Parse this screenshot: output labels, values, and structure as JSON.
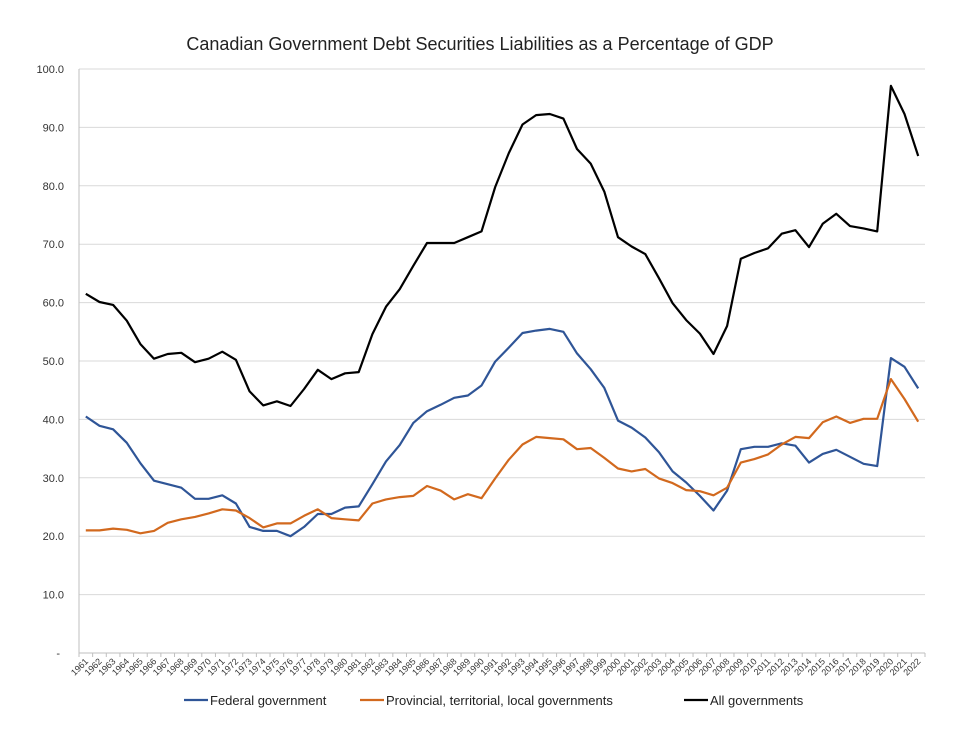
{
  "chart_data": {
    "type": "line",
    "title": "Canadian Government  Debt Securities Liabilities as a Percentage of GDP",
    "xlabel": "",
    "ylabel": "",
    "ylim": [
      0,
      100
    ],
    "yticks": [
      "-",
      "10.0",
      "20.0",
      "30.0",
      "40.0",
      "50.0",
      "60.0",
      "70.0",
      "80.0",
      "90.0",
      "100.0"
    ],
    "grid": true,
    "legend_placement": "bottom",
    "x": [
      1961,
      1962,
      1963,
      1964,
      1965,
      1966,
      1967,
      1968,
      1969,
      1970,
      1971,
      1972,
      1973,
      1974,
      1975,
      1976,
      1977,
      1978,
      1979,
      1980,
      1981,
      1982,
      1983,
      1984,
      1985,
      1986,
      1987,
      1988,
      1989,
      1990,
      1991,
      1992,
      1993,
      1994,
      1995,
      1996,
      1997,
      1998,
      1999,
      2000,
      2001,
      2002,
      2003,
      2004,
      2005,
      2006,
      2007,
      2008,
      2009,
      2010,
      2011,
      2012,
      2013,
      2014,
      2015,
      2016,
      2017,
      2018,
      2019,
      2020,
      2021,
      2022
    ],
    "series": [
      {
        "name": "Federal government",
        "color": "#2F5597",
        "values": [
          40.5,
          38.9,
          38.3,
          36.0,
          32.5,
          29.5,
          28.9,
          28.3,
          26.4,
          26.4,
          27.0,
          25.6,
          21.6,
          20.9,
          20.9,
          20.0,
          21.6,
          23.8,
          23.8,
          24.9,
          25.1,
          28.9,
          32.8,
          35.6,
          39.4,
          41.4,
          42.5,
          43.7,
          44.1,
          45.8,
          49.9,
          52.3,
          54.8,
          55.2,
          55.5,
          55.0,
          51.3,
          48.6,
          45.4,
          39.8,
          38.6,
          36.9,
          34.4,
          31.1,
          29.2,
          26.9,
          24.4,
          27.8,
          34.9,
          35.3,
          35.3,
          35.9,
          35.5,
          32.6,
          34.1,
          34.8,
          33.6,
          32.4,
          32.0,
          50.5,
          49.0,
          45.3
        ]
      },
      {
        "name": "Provincial, territorial, local governments",
        "color": "#D2691E",
        "values": [
          21.0,
          21.0,
          21.3,
          21.1,
          20.5,
          20.9,
          22.3,
          22.9,
          23.3,
          23.9,
          24.6,
          24.4,
          23.1,
          21.5,
          22.2,
          22.2,
          23.5,
          24.6,
          23.1,
          22.9,
          22.7,
          25.6,
          26.3,
          26.7,
          26.9,
          28.6,
          27.8,
          26.3,
          27.2,
          26.5,
          29.9,
          33.1,
          35.7,
          37.0,
          36.8,
          36.6,
          34.9,
          35.1,
          33.4,
          31.6,
          31.1,
          31.5,
          29.9,
          29.1,
          27.9,
          27.7,
          27.0,
          28.3,
          32.6,
          33.2,
          34.0,
          35.7,
          37.0,
          36.8,
          39.5,
          40.5,
          39.4,
          40.1,
          40.1,
          46.9,
          43.5,
          39.6
        ]
      },
      {
        "name": "All governments",
        "color": "#000000",
        "values": [
          61.5,
          60.1,
          59.6,
          56.9,
          52.9,
          50.4,
          51.2,
          51.4,
          49.8,
          50.4,
          51.6,
          50.2,
          44.8,
          42.4,
          43.1,
          42.3,
          45.2,
          48.5,
          46.9,
          47.9,
          48.1,
          54.6,
          59.3,
          62.3,
          66.3,
          70.2,
          70.2,
          70.2,
          71.2,
          72.2,
          79.8,
          85.6,
          90.5,
          92.1,
          92.3,
          91.5,
          86.3,
          83.8,
          79.0,
          71.2,
          69.6,
          68.3,
          64.2,
          59.9,
          57.0,
          54.7,
          51.2,
          56.0,
          67.5,
          68.5,
          69.3,
          71.8,
          72.4,
          69.5,
          73.5,
          75.2,
          73.1,
          72.7,
          72.2,
          97.1,
          92.3,
          85.1
        ]
      }
    ]
  }
}
